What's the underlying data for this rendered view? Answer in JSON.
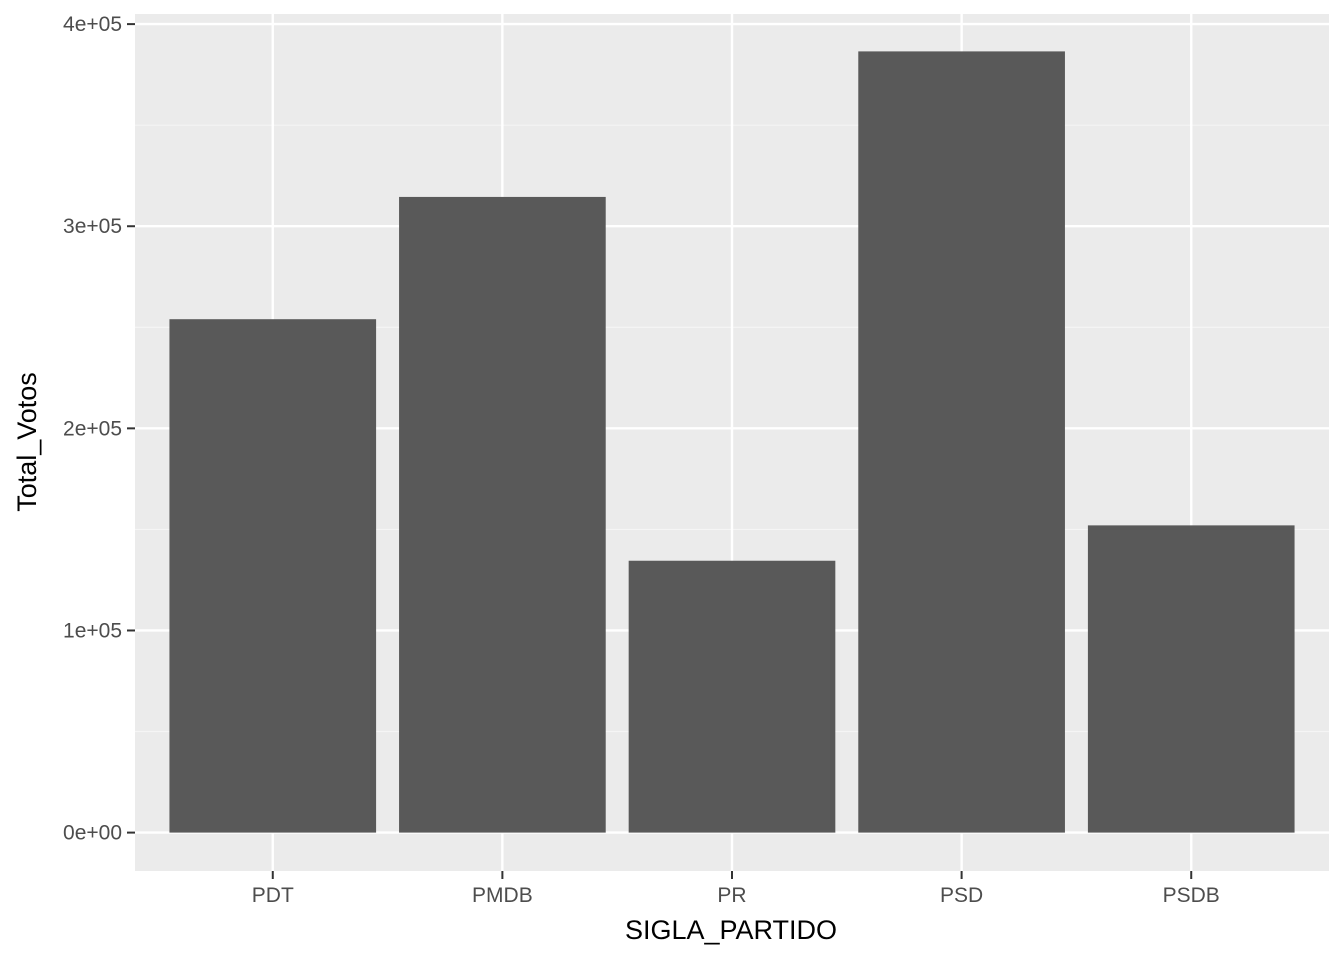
{
  "chart_data": {
    "type": "bar",
    "categories": [
      "PDT",
      "PMDB",
      "PR",
      "PSD",
      "PSDB"
    ],
    "values": [
      254000,
      314500,
      134500,
      386500,
      152000
    ],
    "title": "",
    "xlabel": "SIGLA_PARTIDO",
    "ylabel": "Total_Votos",
    "ylim": [
      -19000,
      405000
    ],
    "y_ticks": [
      0,
      100000,
      200000,
      300000,
      400000
    ],
    "y_tick_labels": [
      "0e+00",
      "1e+05",
      "2e+05",
      "3e+05",
      "4e+05"
    ],
    "grid": true,
    "legend": "none",
    "colors": {
      "panel": "#EBEBEB",
      "grid_major": "#FFFFFF",
      "grid_minor": "#F5F5F5",
      "bar": "#595959",
      "tick": "#333333",
      "tick_label": "#4D4D4D"
    }
  }
}
